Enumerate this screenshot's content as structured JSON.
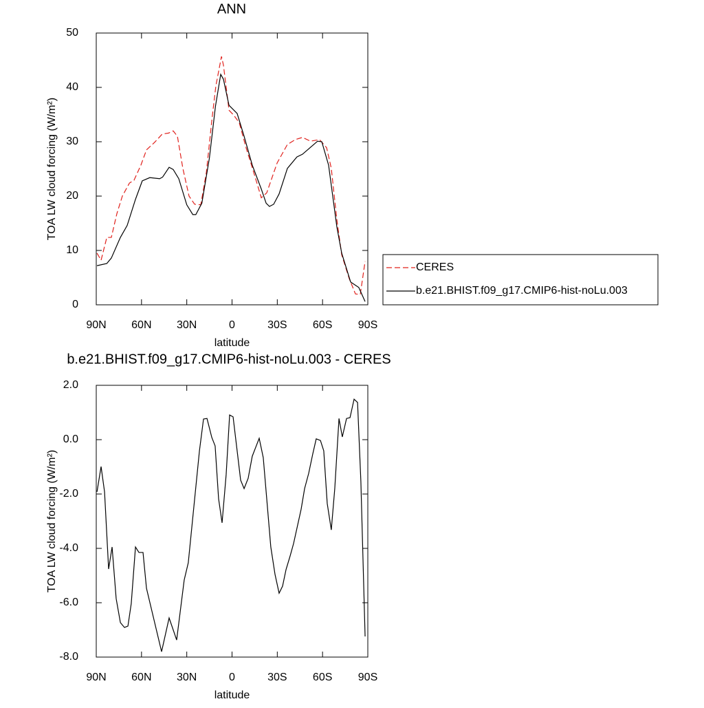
{
  "chart_data": [
    {
      "type": "line",
      "title": "ANN",
      "xlabel": "latitude",
      "ylabel": "TOA LW cloud forcing (W/m²)",
      "xlim": [
        90,
        -90
      ],
      "xticks": [
        {
          "value": 90,
          "label": "90N"
        },
        {
          "value": 60,
          "label": "60N"
        },
        {
          "value": 30,
          "label": "30N"
        },
        0,
        {
          "value": -30,
          "label": "30S"
        },
        {
          "value": -60,
          "label": "60S"
        },
        {
          "value": -90,
          "label": "90S"
        }
      ],
      "ylim": [
        0,
        50
      ],
      "yticks": [
        0,
        10,
        20,
        30,
        40,
        50
      ],
      "legend": "outside right",
      "series": [
        {
          "name": "CERES",
          "color": "#e0201b",
          "dashed": true,
          "x": [
            89.5,
            86.8,
            83,
            80,
            76.3,
            72.7,
            68,
            65,
            60.4,
            56.7,
            51.3,
            46.3,
            42,
            39,
            36.2,
            32.6,
            28.5,
            24.8,
            20.7,
            17,
            13.4,
            10.7,
            7,
            5.7,
            2,
            -1.1,
            -4.8,
            -9.3,
            -13.9,
            -19.4,
            -23,
            -29.9,
            -36.7,
            -42,
            -46.7,
            -52,
            -58,
            -62.7,
            -65.8,
            -69.5,
            -72.7,
            -77.7,
            -81.8,
            -85,
            -88.2
          ],
          "values": [
            9.5,
            8.2,
            12.4,
            12.4,
            16.8,
            20,
            22.4,
            22.9,
            25.7,
            28.5,
            29.9,
            31.4,
            31.6,
            32,
            31,
            25.1,
            20,
            18.5,
            18.4,
            24.4,
            33.9,
            40.3,
            45.7,
            44.1,
            35.8,
            34.9,
            33.5,
            28.9,
            24.8,
            19.7,
            20.6,
            26.1,
            29.5,
            30.4,
            30.8,
            30.1,
            30.4,
            28.9,
            25.1,
            15.6,
            9.2,
            4.8,
            2,
            1.9,
            8
          ]
        },
        {
          "name": "b.e21.BHIST.f09_g17.CMIP6-hist-noLu.003",
          "color": "#000000",
          "dashed": false,
          "x": [
            89.5,
            83,
            80,
            74,
            69.5,
            64,
            59.5,
            54.5,
            48,
            46,
            41.7,
            39,
            35.3,
            30,
            26,
            24,
            20,
            15,
            11,
            7.5,
            5.7,
            2,
            -3.4,
            -8,
            -13.4,
            -19.4,
            -22.6,
            -24.8,
            -27.6,
            -31.2,
            -36.7,
            -43,
            -46.7,
            -51.7,
            -56.7,
            -59.5,
            -64,
            -69.5,
            -72.7,
            -78.6,
            -84,
            -88.2
          ],
          "values": [
            7.2,
            7.6,
            8.6,
            12.4,
            14.6,
            19.4,
            22.8,
            23.4,
            23.2,
            23.5,
            25.3,
            24.9,
            23.2,
            18.4,
            16.6,
            16.6,
            18.7,
            27,
            36.5,
            42.4,
            41.5,
            36.7,
            35.2,
            31,
            25.7,
            21.3,
            18.7,
            18.1,
            18.5,
            20.4,
            25.1,
            27.2,
            27.7,
            28.9,
            30.1,
            30,
            25.7,
            14.3,
            9.5,
            4.2,
            3.2,
            0.6
          ]
        }
      ]
    },
    {
      "type": "line",
      "title": "b.e21.BHIST.f09_g17.CMIP6-hist-noLu.003 - CERES",
      "xlabel": "latitude",
      "ylabel": "TOA LW cloud forcing (W/m²)",
      "xlim": [
        90,
        -90
      ],
      "xticks": [
        {
          "value": 90,
          "label": "90N"
        },
        {
          "value": 60,
          "label": "60N"
        },
        {
          "value": 30,
          "label": "30N"
        },
        0,
        {
          "value": -30,
          "label": "30S"
        },
        {
          "value": -60,
          "label": "60S"
        },
        {
          "value": -90,
          "label": "90S"
        }
      ],
      "ylim": [
        -8,
        2
      ],
      "yticks": [
        {
          "value": -8,
          "label": "-8.0"
        },
        {
          "value": -6,
          "label": "-6.0"
        },
        {
          "value": -4,
          "label": "-4.0"
        },
        {
          "value": -2,
          "label": "-2.0"
        },
        {
          "value": 0,
          "label": "0.0"
        },
        {
          "value": 2,
          "label": "2.0"
        }
      ],
      "series": [
        {
          "color": "#000000",
          "dashed": false,
          "x": [
            89.5,
            86.8,
            84.5,
            81.8,
            79.5,
            76.8,
            74,
            71.3,
            69,
            66.8,
            64,
            61.7,
            59,
            56.7,
            46.7,
            41.7,
            36.7,
            31.7,
            29,
            21.6,
            18.9,
            16.6,
            13.4,
            11.2,
            8.9,
            6.6,
            3.9,
            1.6,
            -0.7,
            -3,
            -5.7,
            -8,
            -10.7,
            -13.4,
            -15.7,
            -18,
            -20.7,
            -25.7,
            -28.5,
            -31.2,
            -33.5,
            -35.8,
            -38.5,
            -40.8,
            -45.8,
            -48.1,
            -50.8,
            -53.5,
            -55.8,
            -58.6,
            -60.8,
            -63.1,
            -65.8,
            -68.1,
            -70.9,
            -73.1,
            -75.9,
            -78.2,
            -80.9,
            -83.2,
            -85.4,
            -88.2
          ],
          "values": [
            -1.92,
            -0.99,
            -1.92,
            -4.76,
            -3.95,
            -5.85,
            -6.73,
            -6.91,
            -6.86,
            -6.03,
            -3.95,
            -4.15,
            -4.15,
            -5.47,
            -7.8,
            -6.56,
            -7.37,
            -5.16,
            -4.53,
            -0.41,
            0.76,
            0.78,
            0.08,
            -0.23,
            -2.18,
            -3.06,
            -1.29,
            0.91,
            0.84,
            -0.23,
            -1.49,
            -1.8,
            -1.42,
            -0.61,
            -0.28,
            0.05,
            -0.66,
            -3.95,
            -4.96,
            -5.65,
            -5.39,
            -4.78,
            -4.28,
            -3.82,
            -2.56,
            -1.8,
            -1.24,
            -0.53,
            0.03,
            -0.03,
            -0.41,
            -2.35,
            -3.32,
            -1.8,
            0.78,
            0.1,
            0.78,
            0.81,
            1.49,
            1.37,
            -1.54,
            -7.24
          ]
        }
      ]
    }
  ]
}
